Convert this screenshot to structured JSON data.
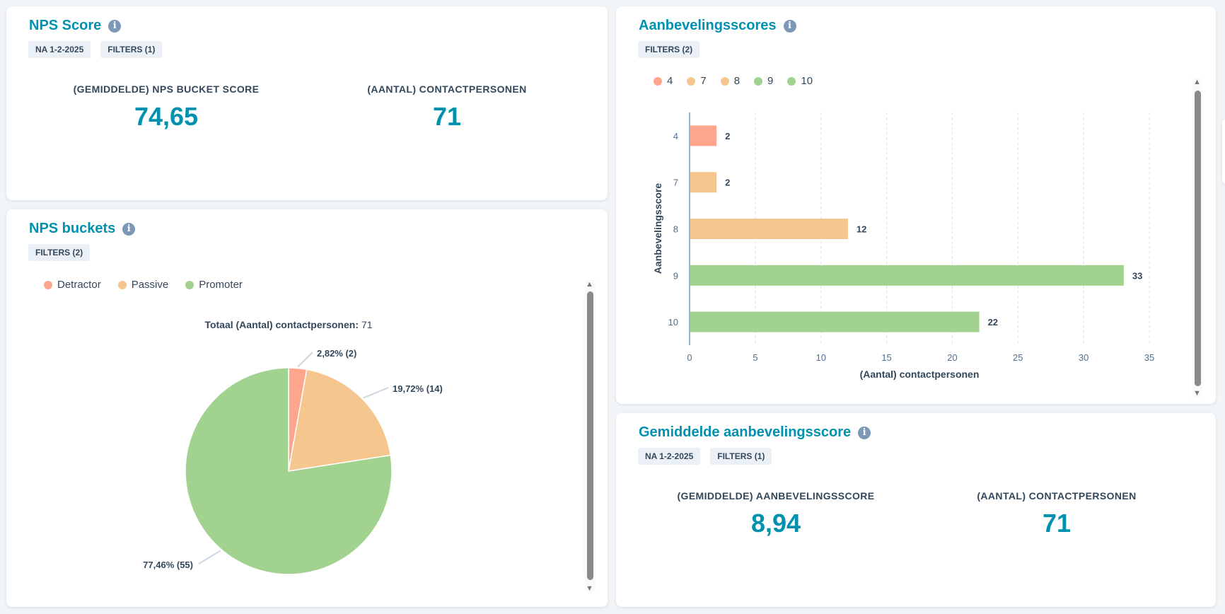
{
  "nps_score": {
    "title": "NPS Score",
    "chips": [
      "NA 1-2-2025",
      "FILTERS (1)"
    ],
    "kpis": [
      {
        "label": "(GEMIDDELDE) NPS BUCKET SCORE",
        "value": "74,65"
      },
      {
        "label": "(AANTAL) CONTACTPERSONEN",
        "value": "71"
      }
    ]
  },
  "nps_buckets": {
    "title": "NPS buckets",
    "chips": [
      "FILTERS (2)"
    ],
    "total_label": "Totaal (Aantal) contactpersonen:",
    "total_value": "71"
  },
  "aanbevelingsscores": {
    "title": "Aanbevelingsscores",
    "chips": [
      "FILTERS (2)"
    ]
  },
  "gemiddelde": {
    "title": "Gemiddelde aanbevelingsscore",
    "chips": [
      "NA 1-2-2025",
      "FILTERS (1)"
    ],
    "kpis": [
      {
        "label": "(GEMIDDELDE) AANBEVELINGSSCORE",
        "value": "8,94"
      },
      {
        "label": "(AANTAL) CONTACTPERSONEN",
        "value": "71"
      }
    ]
  },
  "chart_data": [
    {
      "type": "pie",
      "title": "Totaal (Aantal) contactpersonen: 71",
      "legend": "top-left",
      "categories": [
        "Detractor",
        "Passive",
        "Promoter"
      ],
      "values": [
        2,
        14,
        55
      ],
      "labels": [
        "2,82% (2)",
        "19,72% (14)",
        "77,46% (55)"
      ],
      "colors": [
        "#fea58e",
        "#f5c78e",
        "#a2d28f"
      ]
    },
    {
      "type": "bar",
      "orientation": "horizontal",
      "legend": "top-left",
      "categories": [
        "4",
        "7",
        "8",
        "9",
        "10"
      ],
      "values": [
        2,
        2,
        12,
        33,
        22
      ],
      "colors": [
        "#fea58e",
        "#f5c78e",
        "#f5c78e",
        "#a2d28f",
        "#a2d28f"
      ],
      "xlabel": "(Aantal) contactpersonen",
      "ylabel": "Aanbevelingsscore",
      "xlim": [
        0,
        35
      ],
      "xticks": [
        "0",
        "5",
        "10",
        "15",
        "20",
        "25",
        "30",
        "35"
      ],
      "grid": true
    }
  ]
}
